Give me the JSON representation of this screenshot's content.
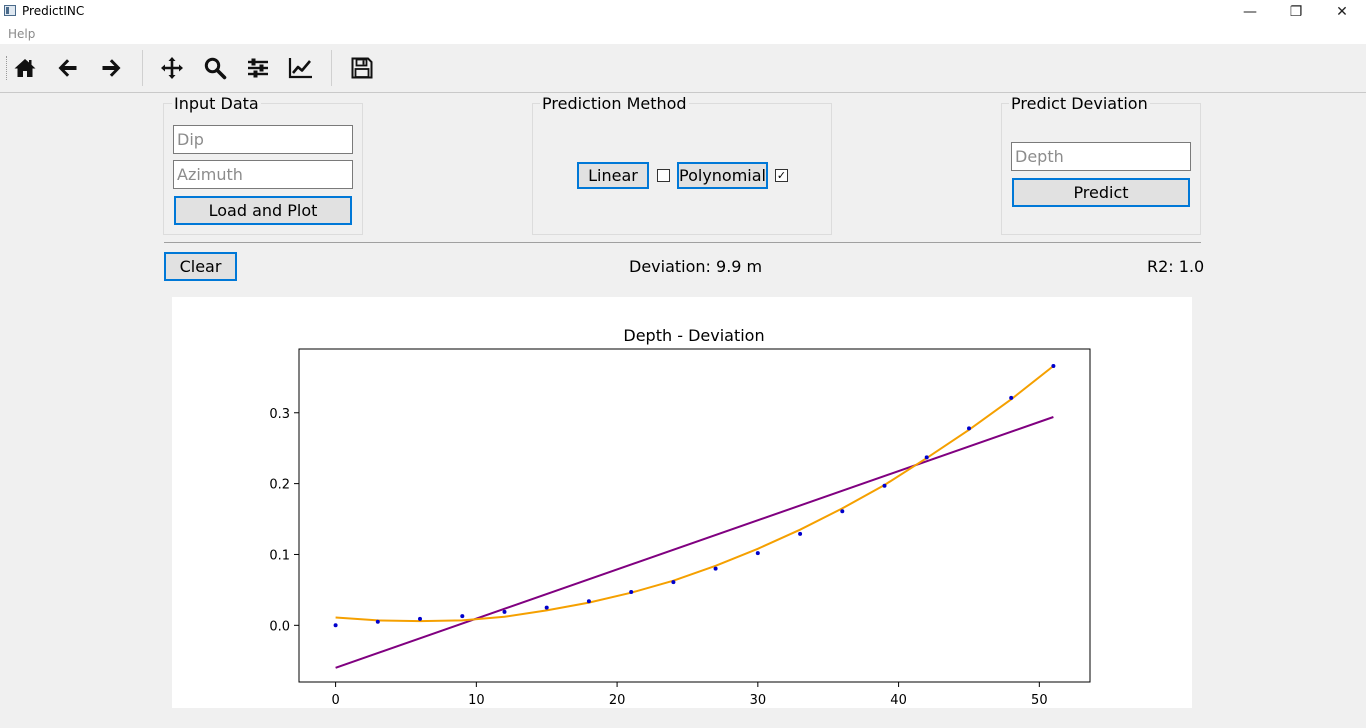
{
  "window": {
    "title": "PredictINC",
    "controls": [
      "—",
      "❐",
      "✕"
    ]
  },
  "menu": {
    "help": "Help"
  },
  "toolbar": {
    "buttons": [
      "home-icon",
      "back-arrow-icon",
      "forward-arrow-icon",
      "pan-move-icon",
      "zoom-magnifier-icon",
      "subplots-config-icon",
      "axes-edit-icon",
      "save-disk-icon"
    ]
  },
  "input_data": {
    "title": "Input Data",
    "dip_placeholder": "Dip",
    "azimuth_placeholder": "Azimuth",
    "load_label": "Load and Plot"
  },
  "prediction_method": {
    "title": "Prediction Method",
    "linear_label": "Linear",
    "linear_checked": false,
    "polynomial_label": "Polynomial",
    "polynomial_checked": true
  },
  "predict_deviation": {
    "title": "Predict Deviation",
    "depth_placeholder": "Depth",
    "predict_label": "Predict"
  },
  "status": {
    "clear_label": "Clear",
    "deviation_text": "Deviation: 9.9 m",
    "r2_text": "R2: 1.0"
  },
  "chart_data": {
    "type": "scatter",
    "title": "Depth - Deviation",
    "xlabel": "",
    "ylabel": "",
    "xlim": [
      -2.6,
      53.6
    ],
    "ylim": [
      -0.08,
      0.39
    ],
    "xticks": [
      0,
      10,
      20,
      30,
      40,
      50
    ],
    "xtick_labels": [
      "0",
      "10",
      "20",
      "30",
      "40",
      "50"
    ],
    "yticks": [
      0.0,
      0.1,
      0.2,
      0.3
    ],
    "ytick_labels": [
      "0.0",
      "0.1",
      "0.2",
      "0.3"
    ],
    "grid": false,
    "series": [
      {
        "kind": "points",
        "color": "#0000cc",
        "x": [
          0,
          3,
          6,
          9,
          12,
          15,
          18,
          21,
          24,
          27,
          30,
          33,
          36,
          39,
          42,
          45,
          48,
          51
        ],
        "y": [
          0.0,
          0.005,
          0.009,
          0.013,
          0.019,
          0.025,
          0.034,
          0.047,
          0.061,
          0.08,
          0.102,
          0.129,
          0.161,
          0.197,
          0.237,
          0.278,
          0.321,
          0.366
        ]
      },
      {
        "kind": "line",
        "color": "#800080",
        "x": [
          0,
          51
        ],
        "y": [
          -0.06,
          0.294
        ]
      },
      {
        "kind": "line",
        "color": "#f5a000",
        "x": [
          0,
          3,
          6,
          9,
          12,
          15,
          18,
          21,
          24,
          27,
          30,
          33,
          36,
          39,
          42,
          45,
          48,
          51
        ],
        "y": [
          0.011,
          0.007,
          0.006,
          0.007,
          0.012,
          0.021,
          0.032,
          0.046,
          0.063,
          0.084,
          0.108,
          0.135,
          0.165,
          0.198,
          0.236,
          0.276,
          0.319,
          0.366
        ]
      }
    ]
  }
}
